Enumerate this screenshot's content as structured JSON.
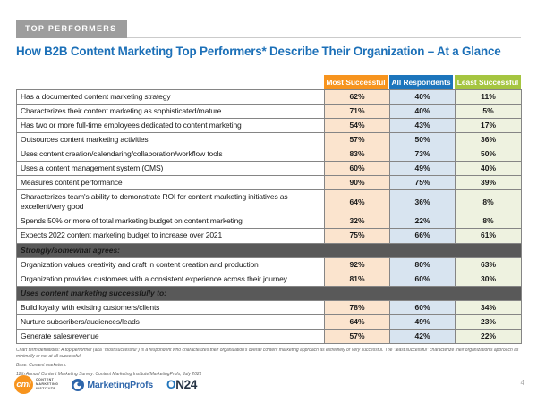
{
  "header": {
    "badge": "TOP PERFORMERS"
  },
  "chart_data": {
    "type": "table",
    "title": "How B2B Content Marketing Top Performers* Describe Their Organization – At a Glance",
    "columns": [
      "Most Successful",
      "All Respondents",
      "Least Successful"
    ],
    "unit": "%",
    "rows": [
      {
        "kind": "data",
        "label": "Has a documented content marketing strategy",
        "values": [
          62,
          40,
          11
        ]
      },
      {
        "kind": "data",
        "label": "Characterizes their content marketing as sophisticated/mature",
        "values": [
          71,
          40,
          5
        ]
      },
      {
        "kind": "data",
        "label": "Has two or more full-time employees dedicated to content marketing",
        "values": [
          54,
          43,
          17
        ]
      },
      {
        "kind": "data",
        "label": "Outsources content marketing activities",
        "values": [
          57,
          50,
          36
        ]
      },
      {
        "kind": "data",
        "label": "Uses content creation/calendaring/collaboration/workflow tools",
        "values": [
          83,
          73,
          50
        ]
      },
      {
        "kind": "data",
        "label": "Uses a content management system (CMS)",
        "values": [
          60,
          49,
          40
        ]
      },
      {
        "kind": "data",
        "label": "Measures content performance",
        "values": [
          90,
          75,
          39
        ]
      },
      {
        "kind": "data",
        "label": "Characterizes team's ability to demonstrate ROI for content marketing initiatives as excellent/very good",
        "values": [
          64,
          36,
          8
        ]
      },
      {
        "kind": "data",
        "label": "Spends 50% or more of total marketing budget on content marketing",
        "values": [
          32,
          22,
          8
        ]
      },
      {
        "kind": "data",
        "label": "Expects 2022 content marketing budget to increase over 2021",
        "values": [
          75,
          66,
          61
        ]
      },
      {
        "kind": "section",
        "label": "Strongly/somewhat agrees:"
      },
      {
        "kind": "data",
        "label": "Organization values creativity and craft in content creation and production",
        "values": [
          92,
          80,
          63
        ]
      },
      {
        "kind": "data",
        "label": "Organization provides customers with a consistent experience across their journey",
        "values": [
          81,
          60,
          30
        ]
      },
      {
        "kind": "section",
        "label": "Uses content marketing successfully to:"
      },
      {
        "kind": "data",
        "label": "Build loyalty with existing customers/clients",
        "values": [
          78,
          60,
          34
        ]
      },
      {
        "kind": "data",
        "label": "Nurture subscribers/audiences/leads",
        "values": [
          64,
          49,
          23
        ]
      },
      {
        "kind": "data",
        "label": "Generate sales/revenue",
        "values": [
          57,
          42,
          22
        ]
      }
    ],
    "colors": {
      "title": "#1c70b8",
      "badge_bg": "#9d9d9d",
      "header_most": "#f7941e",
      "header_all": "#1c75bc",
      "header_least": "#a5c540",
      "cell_most": "#fbe4ce",
      "cell_all": "#d8e4f0",
      "cell_least": "#eef2e0",
      "section_bg": "#595959"
    }
  },
  "footer": {
    "lines": [
      "Chart term definitions: A top performer (aka \"most successful\") is a respondent who characterizes their organization's overall content marketing approach as extremely or very successful. The \"least successful\" characterize their organization's approach as minimally or not at all successful.",
      "Base: Content marketers.",
      "12th Annual Content Marketing Survey: Content Marketing Institute/MarketingProfs, July 2021"
    ],
    "page_number": "4"
  },
  "logos": {
    "cmi_monogram": "cmi",
    "cmi_lines": [
      "CONTENT",
      "MARKETING",
      "INSTITUTE"
    ],
    "marketingprofs": "MarketingProfs",
    "on24_o": "O",
    "on24_rest": "N24"
  }
}
